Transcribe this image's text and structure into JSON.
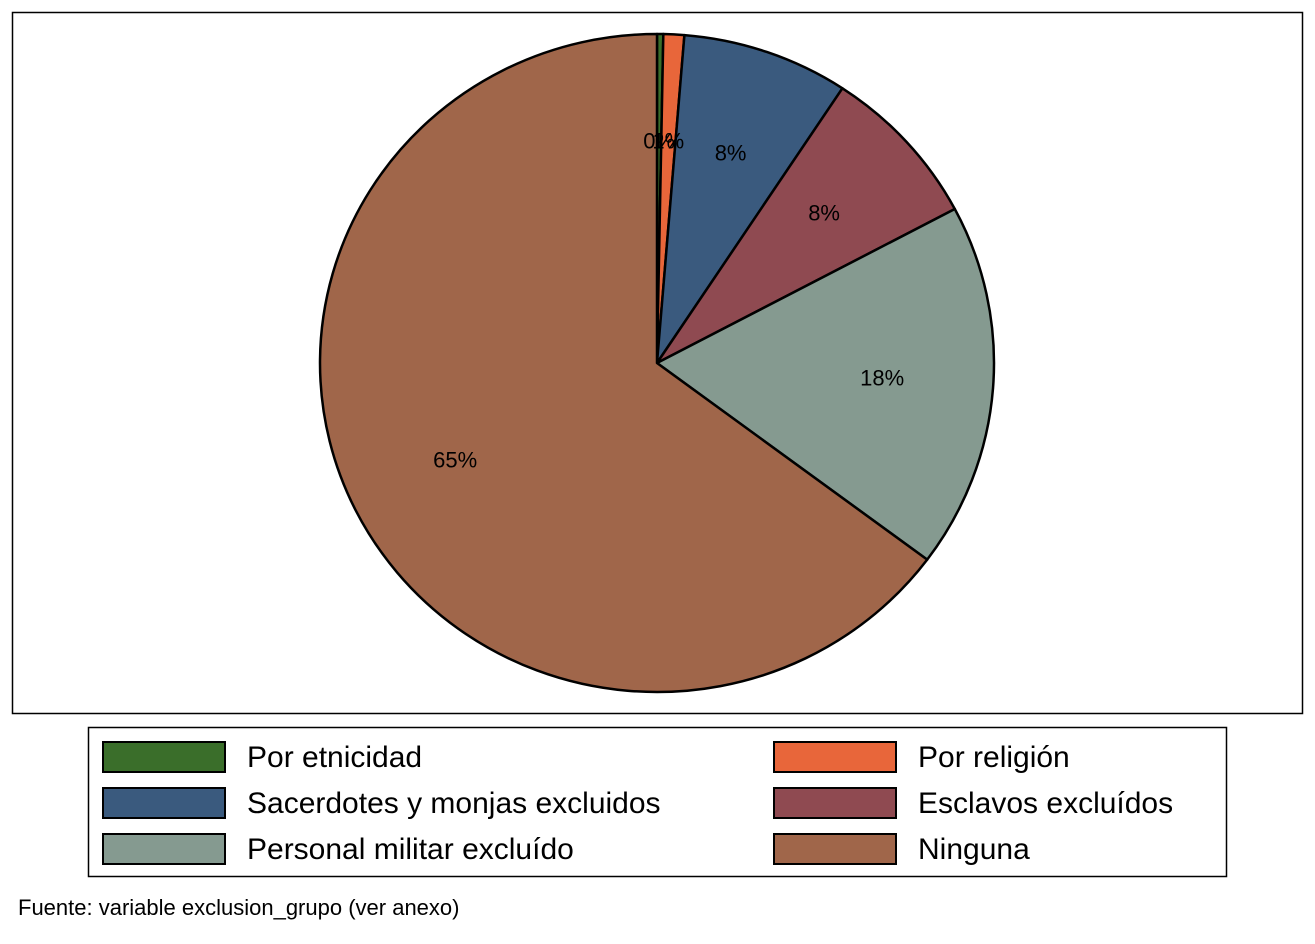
{
  "chart_data": {
    "type": "pie",
    "categories": [
      "Por etnicidad",
      "Por religión",
      "Sacerdotes y monjas excluidos",
      "Esclavos excluídos",
      "Personal militar excluído",
      "Ninguna"
    ],
    "values": [
      0.3,
      1,
      8,
      8,
      18,
      65
    ],
    "value_labels": [
      "0%",
      "1%",
      "8%",
      "8%",
      "18%",
      "65%"
    ],
    "colors": [
      "#3a6e2a",
      "#e8663a",
      "#3a5a7e",
      "#8f4a51",
      "#859a90",
      "#a0664a"
    ],
    "note": "Fuente: variable exclusion_grupo (ver anexo)"
  }
}
